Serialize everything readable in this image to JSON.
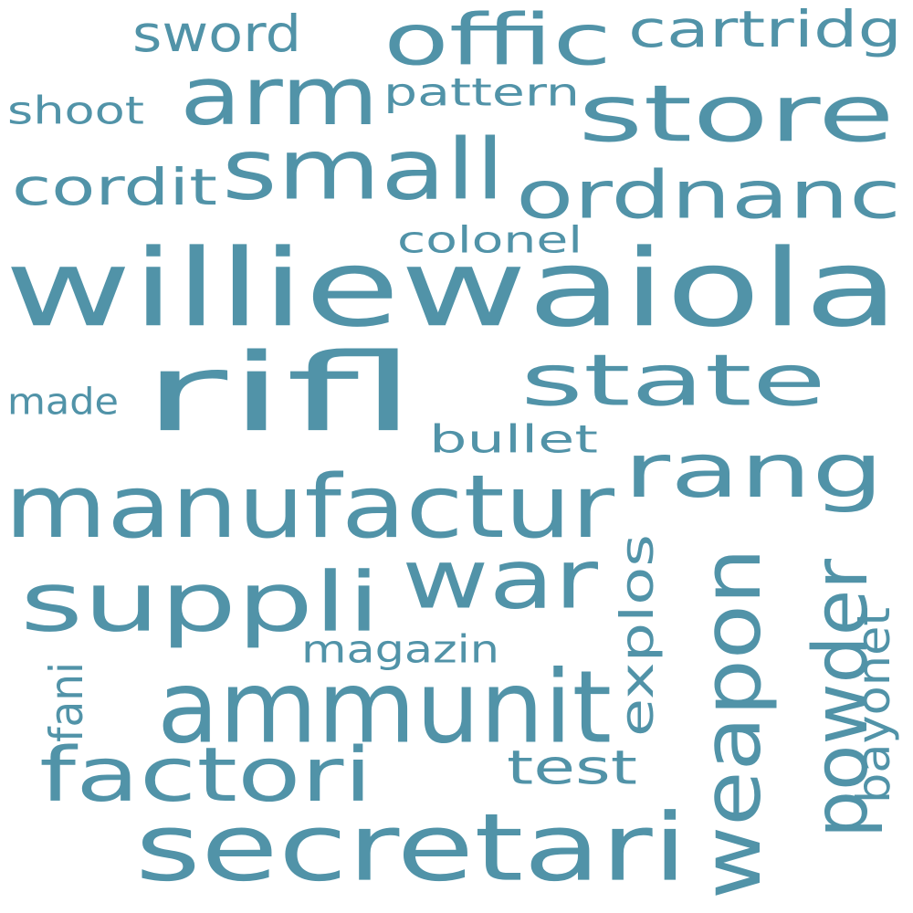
{
  "word_color": "#5193a8",
  "background_color": "#ffffff",
  "words": {
    "williewaiola": "williewaiola",
    "manufactur": "manufactur",
    "secretari": "secretari",
    "rifl": "rifl",
    "ammunit": "ammunit",
    "suppli": "suppli",
    "arm": "arm",
    "store": "store",
    "small": "small",
    "ordnanc": "ordnanc",
    "rang": "rang",
    "state": "state",
    "war": "war",
    "weapon": "weapon",
    "offic": "offic",
    "factori": "factori",
    "powder": "powder",
    "explos": "explos",
    "cordit": "cordit",
    "sword": "sword",
    "cartridg": "cartridg",
    "test": "test",
    "shoot": "shoot",
    "pattern": "pattern",
    "colonel": "colonel",
    "magazin": "magazin",
    "bullet": "bullet",
    "made": "made",
    "bayonet": "bayonet",
    "fani": "fani"
  }
}
